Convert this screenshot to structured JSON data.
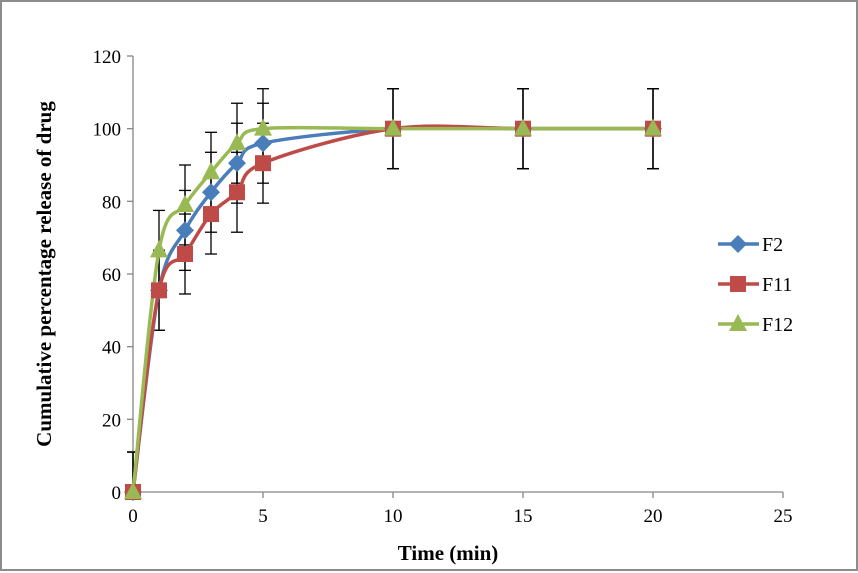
{
  "chart_data": {
    "type": "line",
    "title": "",
    "xlabel": "Time (min)",
    "ylabel": "Cumulative percentage release of drug",
    "xlim": [
      0,
      25
    ],
    "ylim": [
      0,
      120
    ],
    "xticks": [
      0,
      5,
      10,
      15,
      20,
      25
    ],
    "yticks": [
      0,
      20,
      40,
      60,
      80,
      100,
      120
    ],
    "grid": false,
    "legend_position": "right",
    "smooth": true,
    "x": [
      0,
      1,
      2,
      3,
      4,
      5,
      10,
      15,
      20
    ],
    "series": [
      {
        "name": "F2",
        "color": "#4a7ebb",
        "marker": "diamond",
        "values": [
          0,
          55.5,
          72,
          82.5,
          90.5,
          96,
          100,
          100,
          100
        ],
        "error": [
          11,
          11,
          11,
          11,
          11,
          11,
          11,
          11,
          11
        ]
      },
      {
        "name": "F11",
        "color": "#be4b48",
        "marker": "square",
        "values": [
          0,
          55.5,
          65.5,
          76.5,
          82.5,
          90.5,
          100,
          100,
          100
        ],
        "error": [
          11,
          11,
          11,
          11,
          11,
          11,
          11,
          11,
          11
        ]
      },
      {
        "name": "F12",
        "color": "#98b954",
        "marker": "triangle",
        "values": [
          0,
          66.5,
          79,
          88,
          96,
          100,
          100,
          100,
          100
        ],
        "error": [
          11,
          11,
          11,
          11,
          11,
          11,
          11,
          11,
          11
        ]
      }
    ]
  }
}
